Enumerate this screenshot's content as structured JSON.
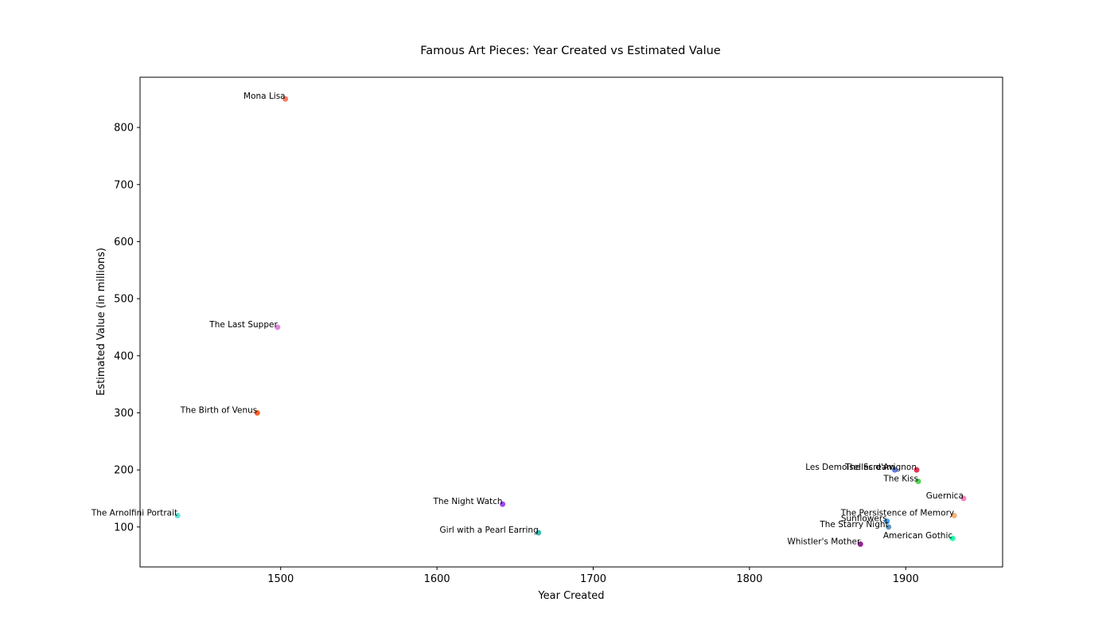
{
  "chart_data": {
    "type": "scatter",
    "title": "Famous Art Pieces: Year Created vs Estimated Value",
    "xlabel": "Year Created",
    "ylabel": "Estimated Value (in millions)",
    "xlim": [
      1410,
      1962
    ],
    "ylim": [
      30,
      888
    ],
    "xticks": [
      1500,
      1600,
      1700,
      1800,
      1900
    ],
    "yticks": [
      100,
      200,
      300,
      400,
      500,
      600,
      700,
      800
    ],
    "grid": false,
    "points": [
      {
        "label": "Mona Lisa",
        "x": 1503,
        "y": 850,
        "color": "#ff6347"
      },
      {
        "label": "The Last Supper",
        "x": 1498,
        "y": 450,
        "color": "#da70d6"
      },
      {
        "label": "The Birth of Venus",
        "x": 1485,
        "y": 300,
        "color": "#ff4500"
      },
      {
        "label": "The Arnolfini Portrait",
        "x": 1434,
        "y": 120,
        "color": "#40e0d0"
      },
      {
        "label": "The Night Watch",
        "x": 1642,
        "y": 140,
        "color": "#8a2be2"
      },
      {
        "label": "Girl with a Pearl Earring",
        "x": 1665,
        "y": 90,
        "color": "#20b2aa"
      },
      {
        "label": "Whistler's Mother",
        "x": 1871,
        "y": 70,
        "color": "#800080"
      },
      {
        "label": "The Starry Night",
        "x": 1889,
        "y": 100,
        "color": "#4682b4"
      },
      {
        "label": "Sunflowers",
        "x": 1888,
        "y": 110,
        "color": "#1e90ff"
      },
      {
        "label": "The Scream",
        "x": 1893,
        "y": 200,
        "color": "#4169e1"
      },
      {
        "label": "Les Demoiselles d'Avignon",
        "x": 1907,
        "y": 200,
        "color": "#dc143c"
      },
      {
        "label": "The Kiss",
        "x": 1908,
        "y": 180,
        "color": "#32cd32"
      },
      {
        "label": "Guernica",
        "x": 1937,
        "y": 150,
        "color": "#ff69b4"
      },
      {
        "label": "The Persistence of Memory",
        "x": 1931,
        "y": 120,
        "color": "#f4a460"
      },
      {
        "label": "American Gothic",
        "x": 1930,
        "y": 80,
        "color": "#00fa9a"
      }
    ]
  }
}
